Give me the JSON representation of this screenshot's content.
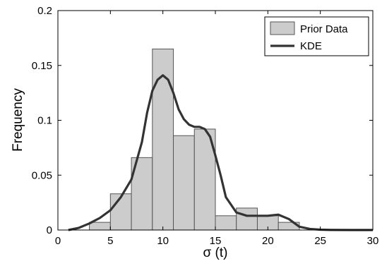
{
  "chart_data": {
    "type": "bar",
    "title": "",
    "xlabel": "σ (t)",
    "ylabel": "Frequency",
    "xlim": [
      0,
      30
    ],
    "ylim": [
      0,
      0.2
    ],
    "xticks": [
      "0",
      "5",
      "10",
      "15",
      "20",
      "25",
      "30"
    ],
    "yticks": [
      "0",
      "0.05",
      "0.1",
      "0.15",
      "0.2"
    ],
    "grid": false,
    "legend_position": "top-right",
    "colors": {
      "bars": "#cccccc",
      "bar_edge": "#555555",
      "kde": "#333333"
    },
    "series": [
      {
        "name": "Prior Data",
        "type": "histogram",
        "bin_edges": [
          3,
          5,
          7,
          9,
          11,
          13,
          15,
          17,
          19,
          21,
          23
        ],
        "values": [
          0.007,
          0.033,
          0.066,
          0.165,
          0.086,
          0.092,
          0.013,
          0.02,
          0.013,
          0.007
        ]
      },
      {
        "name": "KDE",
        "type": "line",
        "x": [
          1,
          2,
          3,
          4,
          5,
          6,
          7,
          8,
          8.5,
          9,
          9.5,
          10,
          10.5,
          11,
          11.5,
          12,
          12.5,
          13,
          13.5,
          14,
          14.5,
          15,
          15.5,
          16,
          17,
          18,
          19,
          20,
          21,
          22,
          23,
          24,
          25,
          26,
          28,
          30
        ],
        "y": [
          0.0,
          0.002,
          0.006,
          0.011,
          0.018,
          0.03,
          0.046,
          0.08,
          0.107,
          0.127,
          0.137,
          0.141,
          0.137,
          0.125,
          0.11,
          0.101,
          0.096,
          0.094,
          0.094,
          0.092,
          0.085,
          0.068,
          0.05,
          0.03,
          0.016,
          0.013,
          0.013,
          0.013,
          0.014,
          0.01,
          0.003,
          0.001,
          0.0003,
          0.0001,
          0.0,
          0.0
        ]
      }
    ]
  }
}
